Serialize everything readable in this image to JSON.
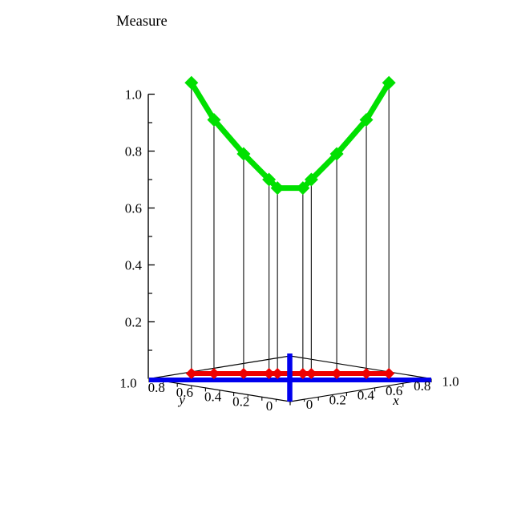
{
  "title": "Measure",
  "background": "#ffffff",
  "colors": {
    "curve": "#00e000",
    "projection": "#ee0000",
    "diagonal_axes": "#0000ee",
    "frame": "#000000",
    "drop_lines": "#222222",
    "text": "#000000"
  },
  "chart_data": {
    "type": "line",
    "subtype": "3d-curve-with-base-projection",
    "title": "Measure",
    "xlabel": "x",
    "ylabel": "y",
    "zlabel": "Measure",
    "xlim": [
      0,
      1
    ],
    "ylim": [
      0,
      1
    ],
    "zlim": [
      0,
      1
    ],
    "x_tick_labels": [
      "0",
      "0.2",
      "0.4",
      "0.6",
      "0.8",
      "1.0"
    ],
    "y_tick_labels": [
      "1.0",
      "0.8",
      "0.6",
      "0.4",
      "0.2",
      "0"
    ],
    "z_tick_labels": [
      "1.0",
      "0.8",
      "0.6",
      "0.4",
      "0.2"
    ],
    "description": "Green curve: measure values at points along the diagonal y = 1 - x of the unit square, with thin vertical drop lines to red diamond projections on the base; blue lines mark the two diagonals of the base square.",
    "points": [
      {
        "x": 0.15,
        "y": 0.85,
        "measure": 1.04
      },
      {
        "x": 0.23,
        "y": 0.77,
        "measure": 0.91
      },
      {
        "x": 0.335,
        "y": 0.665,
        "measure": 0.79
      },
      {
        "x": 0.425,
        "y": 0.575,
        "measure": 0.7
      },
      {
        "x": 0.455,
        "y": 0.545,
        "measure": 0.67
      },
      {
        "x": 0.545,
        "y": 0.455,
        "measure": 0.67
      },
      {
        "x": 0.575,
        "y": 0.425,
        "measure": 0.7
      },
      {
        "x": 0.665,
        "y": 0.335,
        "measure": 0.79
      },
      {
        "x": 0.77,
        "y": 0.23,
        "measure": 0.91
      },
      {
        "x": 0.85,
        "y": 0.15,
        "measure": 1.04
      }
    ]
  }
}
